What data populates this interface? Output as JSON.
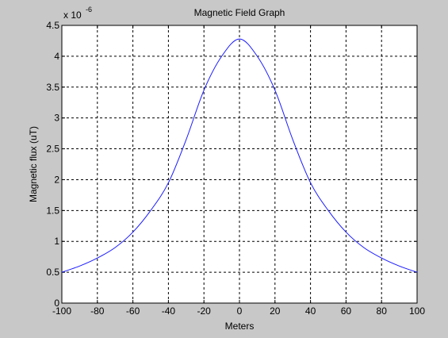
{
  "window": {
    "background": "#c8c8c8",
    "axes_background": "#ffffff",
    "line_color": "#1a1aff"
  },
  "chart_data": {
    "type": "line",
    "title": "Magnetic Field Graph",
    "xlabel": "Meters",
    "ylabel": "Magnetic flux (uT)",
    "y_multiplier": "x 10",
    "y_exponent": "-6",
    "xlim": [
      -100,
      100
    ],
    "ylim": [
      0,
      4.5
    ],
    "grid": true,
    "x_ticks": [
      -100,
      -80,
      -60,
      -40,
      -20,
      0,
      20,
      40,
      60,
      80,
      100
    ],
    "y_ticks": [
      0,
      0.5,
      1,
      1.5,
      2,
      2.5,
      3,
      3.5,
      4,
      4.5
    ],
    "x_tick_labels": [
      "-100",
      "-80",
      "-60",
      "-40",
      "-20",
      "0",
      "20",
      "40",
      "60",
      "80",
      "100"
    ],
    "y_tick_labels": [
      "0",
      "0.5",
      "1",
      "1.5",
      "2",
      "2.5",
      "3",
      "3.5",
      "4",
      "4.5"
    ],
    "series": [
      {
        "color": "#1a1aff",
        "x": [
          -100,
          -90,
          -80,
          -70,
          -60,
          -50,
          -40,
          -30,
          -20,
          -10,
          0,
          10,
          20,
          30,
          40,
          50,
          60,
          70,
          80,
          90,
          100
        ],
        "y": [
          0.5,
          0.6,
          0.73,
          0.9,
          1.15,
          1.5,
          1.95,
          2.65,
          3.45,
          4.0,
          4.28,
          4.0,
          3.45,
          2.65,
          1.95,
          1.5,
          1.15,
          0.9,
          0.73,
          0.6,
          0.5
        ]
      }
    ]
  }
}
